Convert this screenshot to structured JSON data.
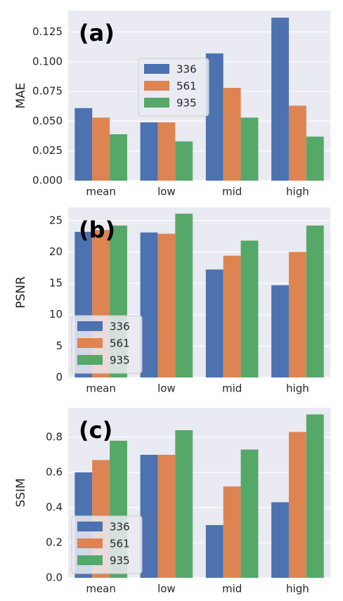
{
  "chart_data": [
    {
      "type": "bar",
      "panel_label": "(a)",
      "ylabel": "MAE",
      "categories": [
        "mean",
        "low",
        "mid",
        "high"
      ],
      "series": [
        {
          "name": "336",
          "color": "#4c72b0",
          "values": [
            0.061,
            0.049,
            0.107,
            0.137
          ]
        },
        {
          "name": "561",
          "color": "#dd8452",
          "values": [
            0.053,
            0.049,
            0.078,
            0.063
          ]
        },
        {
          "name": "935",
          "color": "#55a868",
          "values": [
            0.039,
            0.033,
            0.053,
            0.037
          ]
        }
      ],
      "ylim": [
        0,
        0.143
      ],
      "yticks": [
        {
          "value": 0,
          "label": "0.000"
        },
        {
          "value": 0.025,
          "label": "0.025"
        },
        {
          "value": 0.05,
          "label": "0.050"
        },
        {
          "value": 0.075,
          "label": "0.075"
        },
        {
          "value": 0.1,
          "label": "0.100"
        },
        {
          "value": 0.125,
          "label": "0.125"
        }
      ],
      "grid": true,
      "legend": "upper center"
    },
    {
      "type": "bar",
      "panel_label": "(b)",
      "ylabel": "PSNR",
      "categories": [
        "mean",
        "low",
        "mid",
        "high"
      ],
      "series": [
        {
          "name": "336",
          "color": "#4c72b0",
          "values": [
            23.2,
            23.1,
            17.2,
            14.7
          ]
        },
        {
          "name": "561",
          "color": "#dd8452",
          "values": [
            23.5,
            22.9,
            19.4,
            20.0
          ]
        },
        {
          "name": "935",
          "color": "#55a868",
          "values": [
            24.2,
            26.1,
            21.8,
            24.2
          ]
        }
      ],
      "ylim": [
        0,
        27.1
      ],
      "yticks": [
        0,
        5,
        10,
        15,
        20,
        25
      ],
      "grid": true,
      "legend": "lower left"
    },
    {
      "type": "bar",
      "panel_label": "(c)",
      "ylabel": "SSIM",
      "categories": [
        "mean",
        "low",
        "mid",
        "high"
      ],
      "series": [
        {
          "name": "336",
          "color": "#4c72b0",
          "values": [
            0.6,
            0.7,
            0.3,
            0.43
          ]
        },
        {
          "name": "561",
          "color": "#dd8452",
          "values": [
            0.67,
            0.7,
            0.52,
            0.83
          ]
        },
        {
          "name": "935",
          "color": "#55a868",
          "values": [
            0.78,
            0.84,
            0.73,
            0.93
          ]
        }
      ],
      "ylim": [
        0,
        0.968
      ],
      "yticks": [
        {
          "value": 0,
          "label": "0.0"
        },
        0.2,
        0.4,
        0.6,
        0.8
      ],
      "grid": true,
      "legend": "lower left"
    }
  ]
}
